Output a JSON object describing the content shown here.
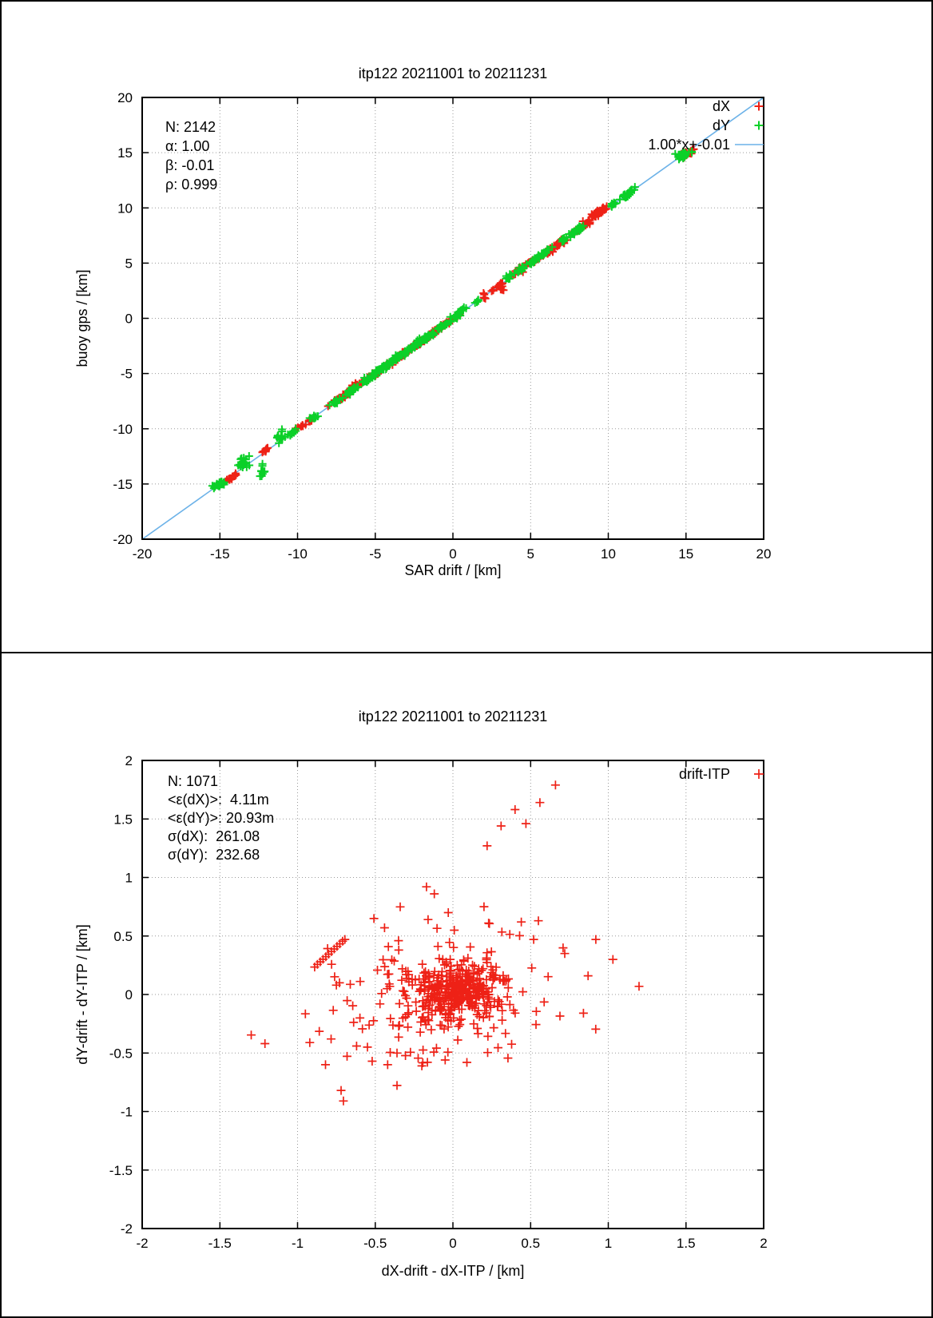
{
  "colors": {
    "red": "#ee2116",
    "green": "#0bd028",
    "blue": "#6cb2e8",
    "grid": "#9a9a9a",
    "axis": "#000000"
  },
  "chart_data": [
    {
      "type": "scatter",
      "title": "itp122 20211001 to 20211231",
      "xlabel": "SAR drift / [km]",
      "ylabel": "buoy gps / [km]",
      "xlim": [
        -20,
        20
      ],
      "ylim": [
        -20,
        20
      ],
      "xticks": [
        -20,
        -15,
        -10,
        -5,
        0,
        5,
        10,
        15,
        20
      ],
      "yticks": [
        -20,
        -15,
        -10,
        -5,
        0,
        5,
        10,
        15,
        20
      ],
      "grid": true,
      "legend_position": "top-right",
      "stats": [
        "N: 2142",
        "α: 1.00",
        "β: -0.01",
        "ρ: 0.999"
      ],
      "legend": [
        {
          "label": "dX",
          "type": "marker",
          "color": "red"
        },
        {
          "label": "dY",
          "type": "marker",
          "color": "green"
        },
        {
          "label": "1.00*x+-0.01",
          "type": "line",
          "color": "blue"
        }
      ],
      "fit_line": {
        "slope": 1.0,
        "intercept": -0.01,
        "color": "blue"
      },
      "seed": 1337,
      "series": [
        {
          "name": "dX",
          "color": "red",
          "marker": "plus",
          "clusters": [
            [
              -14.25,
              -14.4,
              12,
              0.22,
              0.06,
              0.06
            ],
            [
              -11.9,
              -11.85,
              10,
              0.18,
              0.06,
              0.06
            ],
            [
              -9.8,
              -9.85,
              9,
              0.22,
              0.06,
              0.06
            ],
            [
              -9.15,
              -9.25,
              6,
              0.1,
              0.05,
              0.05
            ],
            [
              -7.15,
              -7.2,
              24,
              0.3,
              0.08,
              0.08
            ],
            [
              -6.35,
              -6.2,
              16,
              0.25,
              0.1,
              0.1
            ],
            [
              -5.0,
              -5.05,
              22,
              0.28,
              0.08,
              0.08
            ],
            [
              -4.15,
              -4.2,
              18,
              0.25,
              0.08,
              0.08
            ],
            [
              -2.95,
              -3.0,
              28,
              0.3,
              0.08,
              0.08
            ],
            [
              -2.0,
              -2.05,
              22,
              0.3,
              0.07,
              0.07
            ],
            [
              -1.15,
              -1.2,
              18,
              0.25,
              0.07,
              0.07
            ],
            [
              -0.4,
              -0.45,
              12,
              0.18,
              0.06,
              0.06
            ],
            [
              0.3,
              0.28,
              8,
              0.15,
              0.05,
              0.05
            ],
            [
              2.05,
              2.1,
              5,
              0.05,
              0.05,
              0.22
            ],
            [
              2.8,
              2.75,
              7,
              0.12,
              0.06,
              0.06
            ],
            [
              3.1,
              2.95,
              9,
              0.06,
              0.05,
              0.32
            ],
            [
              4.25,
              4.3,
              20,
              0.25,
              0.08,
              0.08
            ],
            [
              5.1,
              5.1,
              16,
              0.2,
              0.08,
              0.08
            ],
            [
              6.3,
              6.25,
              28,
              0.4,
              0.1,
              0.1
            ],
            [
              7.0,
              6.95,
              12,
              0.18,
              0.08,
              0.08
            ],
            [
              8.3,
              8.25,
              22,
              0.3,
              0.08,
              0.08
            ],
            [
              9.15,
              9.3,
              26,
              0.3,
              0.1,
              0.1
            ],
            [
              9.65,
              9.8,
              16,
              0.15,
              0.08,
              0.08
            ],
            [
              14.95,
              14.85,
              28,
              0.18,
              0.12,
              0.12
            ]
          ]
        },
        {
          "name": "dY",
          "color": "green",
          "marker": "plus",
          "clusters": [
            [
              -15.05,
              -15.05,
              30,
              0.12,
              0.1,
              0.1
            ],
            [
              -13.45,
              -13.15,
              18,
              0.15,
              0.1,
              0.28
            ],
            [
              -12.25,
              -13.75,
              13,
              0.05,
              0.06,
              0.3
            ],
            [
              -11.2,
              -10.9,
              12,
              0.1,
              0.06,
              0.28
            ],
            [
              -10.35,
              -10.35,
              10,
              0.18,
              0.06,
              0.06
            ],
            [
              -8.95,
              -8.95,
              8,
              0.12,
              0.07,
              0.07
            ],
            [
              -7.5,
              -7.5,
              14,
              0.22,
              0.08,
              0.08
            ],
            [
              -6.6,
              -6.6,
              18,
              0.26,
              0.08,
              0.08
            ],
            [
              -5.7,
              -5.7,
              16,
              0.22,
              0.09,
              0.09
            ],
            [
              -4.7,
              -4.7,
              24,
              0.28,
              0.09,
              0.09
            ],
            [
              -3.5,
              -3.5,
              42,
              0.45,
              0.1,
              0.1
            ],
            [
              -2.5,
              -2.5,
              28,
              0.35,
              0.09,
              0.09
            ],
            [
              -1.6,
              -1.6,
              22,
              0.28,
              0.08,
              0.08
            ],
            [
              -0.7,
              -0.72,
              18,
              0.22,
              0.07,
              0.07
            ],
            [
              0.18,
              0.15,
              16,
              0.2,
              0.08,
              0.08
            ],
            [
              0.55,
              0.7,
              10,
              0.12,
              0.09,
              0.09
            ],
            [
              1.5,
              1.5,
              6,
              0.06,
              0.07,
              0.07
            ],
            [
              3.65,
              3.6,
              11,
              0.12,
              0.08,
              0.18
            ],
            [
              4.4,
              4.5,
              11,
              0.12,
              0.08,
              0.12
            ],
            [
              5.2,
              5.2,
              14,
              0.18,
              0.08,
              0.08
            ],
            [
              5.95,
              5.95,
              18,
              0.22,
              0.09,
              0.09
            ],
            [
              7.15,
              7.15,
              11,
              0.12,
              0.08,
              0.08
            ],
            [
              7.65,
              7.65,
              9,
              0.1,
              0.08,
              0.08
            ],
            [
              8.2,
              8.2,
              13,
              0.18,
              0.09,
              0.09
            ],
            [
              10.45,
              10.45,
              9,
              0.12,
              0.08,
              0.08
            ],
            [
              11.1,
              11.05,
              11,
              0.15,
              0.09,
              0.09
            ],
            [
              11.55,
              11.65,
              11,
              0.12,
              0.08,
              0.14
            ],
            [
              14.75,
              14.75,
              32,
              0.15,
              0.14,
              0.14
            ]
          ]
        }
      ]
    },
    {
      "type": "scatter",
      "title": "itp122 20211001 to 20211231",
      "xlabel": "dX-drift - dX-ITP / [km]",
      "ylabel": "dY-drift - dY-ITP / [km]",
      "xlim": [
        -2,
        2
      ],
      "ylim": [
        -2,
        2
      ],
      "xticks": [
        -2,
        -1.5,
        -1,
        -0.5,
        0,
        0.5,
        1,
        1.5,
        2
      ],
      "yticks": [
        -2,
        -1.5,
        -1,
        -0.5,
        0,
        0.5,
        1,
        1.5,
        2
      ],
      "grid": true,
      "legend_position": "top-right",
      "stats": [
        "N: 1071",
        "<ε(dX)>:  4.11m",
        "<ε(dY)>: 20.93m",
        "σ(dX):  261.08",
        "σ(dY):  232.68"
      ],
      "legend": [
        {
          "label": "drift-ITP",
          "type": "marker",
          "color": "red"
        }
      ],
      "seed": 4242,
      "series": [
        {
          "name": "drift-ITP",
          "color": "red",
          "marker": "plus",
          "clusters": [
            [
              0.04,
              0.04,
              250,
              0,
              0.13,
              0.1
            ],
            [
              0.0,
              -0.02,
              170,
              0,
              0.28,
              0.2
            ],
            [
              -0.05,
              -0.05,
              75,
              0,
              0.48,
              0.33
            ]
          ],
          "points": [
            [
              0.22,
              1.27
            ],
            [
              0.31,
              1.44
            ],
            [
              0.4,
              1.58
            ],
            [
              0.47,
              1.46
            ],
            [
              0.56,
              1.64
            ],
            [
              0.66,
              1.79
            ],
            [
              -0.89,
              0.235
            ],
            [
              -0.872,
              0.257
            ],
            [
              -0.854,
              0.279
            ],
            [
              -0.836,
              0.301
            ],
            [
              -0.818,
              0.323
            ],
            [
              -0.8,
              0.345
            ],
            [
              -0.782,
              0.367
            ],
            [
              -0.764,
              0.389
            ],
            [
              -0.746,
              0.411
            ],
            [
              -0.728,
              0.433
            ],
            [
              -0.71,
              0.455
            ],
            [
              -0.695,
              0.47
            ],
            [
              -1.21,
              -0.42
            ],
            [
              -0.72,
              -0.82
            ],
            [
              -0.705,
              -0.91
            ],
            [
              -0.82,
              -0.6
            ],
            [
              -0.86,
              -0.315
            ],
            [
              -0.77,
              -0.135
            ],
            [
              -0.73,
              0.1
            ],
            [
              -0.75,
              0.08
            ],
            [
              1.03,
              0.3
            ],
            [
              0.92,
              0.47
            ],
            [
              0.87,
              0.16
            ],
            [
              0.84,
              -0.16
            ],
            [
              0.72,
              0.35
            ],
            [
              0.55,
              0.63
            ],
            [
              0.44,
              0.62
            ],
            [
              0.52,
              0.47
            ],
            [
              -0.17,
              0.92
            ],
            [
              -0.12,
              0.86
            ],
            [
              -0.03,
              0.7
            ],
            [
              -0.16,
              0.64
            ],
            [
              0.2,
              0.75
            ],
            [
              0.23,
              0.61
            ],
            [
              -0.44,
              0.57
            ],
            [
              -0.35,
              0.46
            ],
            [
              -0.52,
              -0.57
            ],
            [
              -0.42,
              -0.6
            ],
            [
              -0.2,
              -0.61
            ],
            [
              -0.05,
              -0.56
            ],
            [
              0.09,
              -0.58
            ],
            [
              -0.36,
              -0.5
            ],
            [
              -0.55,
              -0.45
            ],
            [
              -0.62,
              -0.44
            ]
          ]
        }
      ]
    }
  ]
}
